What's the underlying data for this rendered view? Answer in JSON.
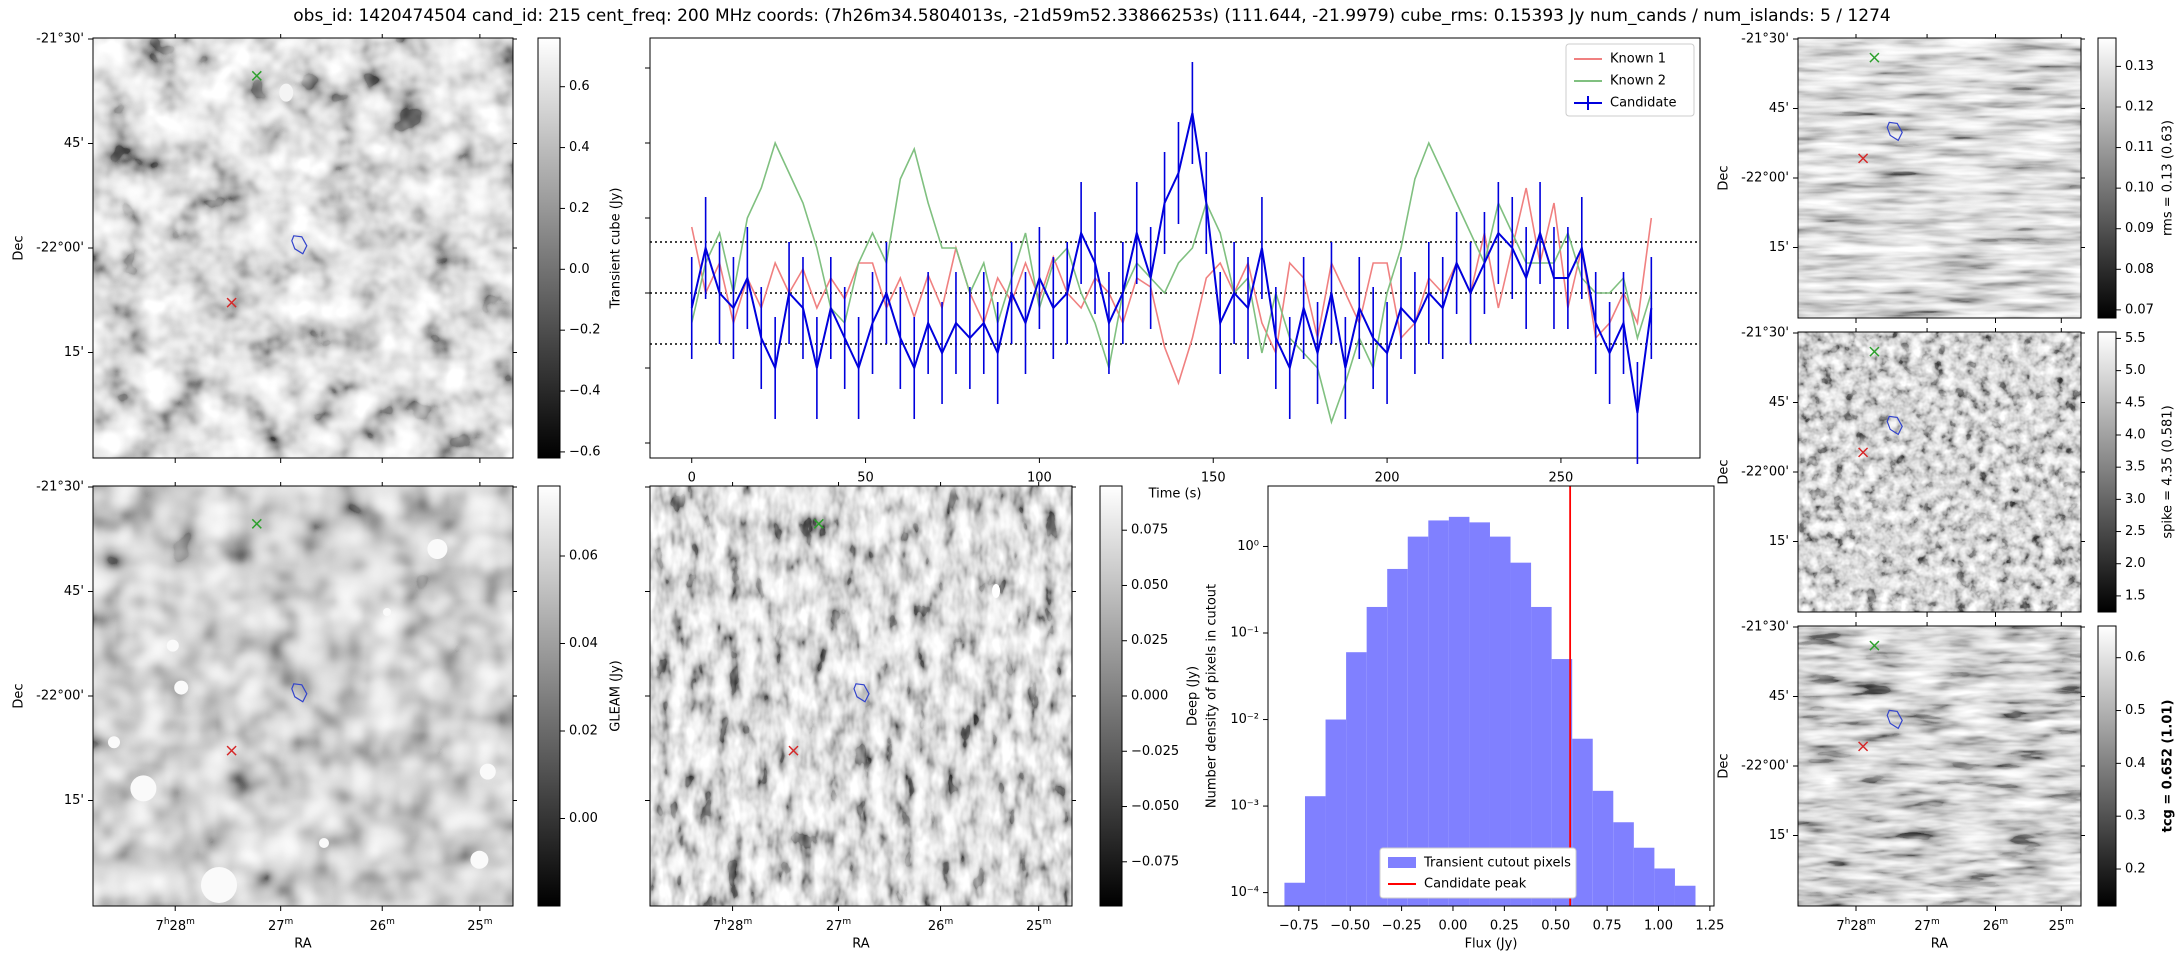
{
  "title": "obs_id: 1420474504 cand_id: 215 cent_freq: 200 MHz coords: (7h26m34.5804013s, -21d59m52.33866253s) (111.644, -21.9979) cube_rms: 0.15393 Jy num_cands / num_islands: 5 / 1274",
  "sky_axes": {
    "dec_ticks": [
      "-21°30'",
      "45'",
      "-22°00'",
      "15'"
    ],
    "ra_ticks": [
      "7h28m",
      "27m",
      "26m",
      "25m"
    ],
    "dec_label": "Dec",
    "ra_label": "RA"
  },
  "markers": {
    "known_color": "#2ca02c",
    "candidate_color": "#d62728",
    "island_color": "#3344cc"
  },
  "colors": {
    "known1": "#f08080",
    "known2": "#80c080",
    "candidate": "#0000dd",
    "hist": "#8080ff",
    "peak": "#ff0000"
  },
  "chart_data": [
    {
      "type": "image",
      "panel": "transient-cube",
      "colorbar_label": "Transient cube (Jy)",
      "colorbar_range": [
        -0.62,
        0.76
      ],
      "colorbar_ticks": [
        "0.6",
        "0.4",
        "0.2",
        "0.0",
        "−0.2",
        "−0.4",
        "−0.6"
      ],
      "colorbar_tick_values": [
        0.6,
        0.4,
        0.2,
        0.0,
        -0.2,
        -0.4,
        -0.6
      ]
    },
    {
      "type": "line",
      "panel": "lightcurve",
      "xlabel": "Time (s)",
      "x_ticks": [
        "0",
        "50",
        "100",
        "150",
        "200",
        "250"
      ],
      "x_tick_values": [
        0,
        50,
        100,
        150,
        200,
        250
      ],
      "xlim": [
        -12,
        290
      ],
      "ylim": [
        -0.55,
        0.85
      ],
      "threshold_lines": [
        0.17,
        0.0,
        -0.17
      ],
      "legend": [
        "Known 1",
        "Known 2",
        "Candidate"
      ],
      "legend_position": "top-right",
      "t_start": 0,
      "t_step": 4,
      "series": [
        {
          "name": "Known 1",
          "values": [
            0.22,
            0.0,
            0.1,
            -0.1,
            0.05,
            -0.05,
            0.1,
            0.0,
            0.08,
            -0.05,
            0.05,
            -0.02,
            0.1,
            0.1,
            -0.05,
            0.05,
            -0.08,
            0.06,
            -0.05,
            0.15,
            0.0,
            -0.1,
            0.05,
            -0.03,
            0.1,
            -0.02,
            0.12,
            0.0,
            -0.05,
            0.05,
            0.0,
            -0.1,
            0.05,
            0.02,
            -0.18,
            -0.3,
            -0.15,
            0.05,
            0.1,
            0.0,
            0.1,
            -0.1,
            -0.2,
            0.1,
            0.05,
            -0.15,
            0.1,
            0.0,
            -0.1,
            0.1,
            0.1,
            -0.15,
            -0.1,
            0.05,
            0.0,
            0.1,
            0.0,
            0.2,
            -0.05,
            0.15,
            0.35,
            0.1,
            0.3,
            -0.05,
            0.15,
            -0.15,
            -0.1,
            0.0,
            -0.1,
            0.25
          ]
        },
        {
          "name": "Known 2",
          "values": [
            -0.1,
            0.1,
            0.2,
            0.0,
            0.25,
            0.35,
            0.5,
            0.4,
            0.3,
            0.15,
            -0.05,
            -0.1,
            0.1,
            0.2,
            0.1,
            0.38,
            0.48,
            0.3,
            0.15,
            0.15,
            0.0,
            0.1,
            -0.1,
            0.05,
            0.2,
            -0.05,
            0.1,
            0.15,
            0.0,
            -0.1,
            -0.25,
            0.0,
            0.1,
            0.05,
            0.0,
            0.1,
            0.15,
            0.3,
            0.2,
            0.0,
            0.05,
            -0.2,
            0.0,
            -0.15,
            -0.2,
            -0.25,
            -0.43,
            -0.3,
            -0.15,
            -0.25,
            0.0,
            0.15,
            0.38,
            0.5,
            0.4,
            0.3,
            0.2,
            0.1,
            0.3,
            0.2,
            0.1,
            0.1,
            0.1,
            0.2,
            0.05,
            0.0,
            0.0,
            0.05,
            -0.15,
            0.0
          ]
        },
        {
          "name": "Candidate",
          "values": [
            -0.05,
            0.15,
            0.0,
            -0.05,
            0.05,
            -0.15,
            -0.25,
            0.0,
            -0.05,
            -0.25,
            -0.05,
            -0.15,
            -0.25,
            -0.1,
            0.0,
            -0.15,
            -0.25,
            -0.1,
            -0.2,
            -0.1,
            -0.15,
            -0.1,
            -0.2,
            0.0,
            -0.1,
            0.05,
            -0.05,
            0.0,
            0.2,
            0.1,
            -0.1,
            0.0,
            0.2,
            0.05,
            0.3,
            0.4,
            0.6,
            0.3,
            -0.1,
            0.0,
            -0.05,
            0.15,
            -0.15,
            -0.25,
            -0.05,
            -0.2,
            0.0,
            -0.25,
            -0.05,
            -0.15,
            -0.2,
            -0.05,
            -0.1,
            0.0,
            -0.05,
            0.1,
            0.0,
            0.1,
            0.2,
            0.15,
            0.05,
            0.2,
            0.05,
            0.05,
            0.15,
            -0.1,
            -0.2,
            -0.1,
            -0.4,
            -0.05
          ],
          "error": 0.17
        }
      ]
    },
    {
      "type": "image",
      "panel": "gleam",
      "colorbar_label": "GLEAM (Jy)",
      "colorbar_range": [
        -0.02,
        0.076
      ],
      "colorbar_ticks": [
        "0.06",
        "0.04",
        "0.02",
        "0.00"
      ],
      "colorbar_tick_values": [
        0.06,
        0.04,
        0.02,
        0.0
      ]
    },
    {
      "type": "image",
      "panel": "deep",
      "colorbar_label": "Deep (Jy)",
      "colorbar_range": [
        -0.095,
        0.095
      ],
      "colorbar_ticks": [
        "0.075",
        "0.050",
        "0.025",
        "0.000",
        "−0.025",
        "−0.050",
        "−0.075"
      ],
      "colorbar_tick_values": [
        0.075,
        0.05,
        0.025,
        0.0,
        -0.025,
        -0.05,
        -0.075
      ]
    },
    {
      "type": "bar",
      "panel": "histogram",
      "xlabel": "Flux (Jy)",
      "ylabel": "Number density of pixels in cutout",
      "x_ticks": [
        "−0.75",
        "−0.50",
        "−0.25",
        "0.00",
        "0.25",
        "0.50",
        "0.75",
        "1.00",
        "1.25"
      ],
      "x_tick_values": [
        -0.75,
        -0.5,
        -0.25,
        0.0,
        0.25,
        0.5,
        0.75,
        1.0,
        1.25
      ],
      "y_ticks": [
        "10⁰",
        "10⁻¹",
        "10⁻²",
        "10⁻³",
        "10⁻⁴"
      ],
      "y_tick_values": [
        1,
        0.1,
        0.01,
        0.001,
        0.0001
      ],
      "y_scale": "log",
      "xlim": [
        -0.9,
        1.27
      ],
      "ylim": [
        7e-05,
        5
      ],
      "bin_edges": [
        -0.82,
        -0.72,
        -0.62,
        -0.52,
        -0.42,
        -0.32,
        -0.22,
        -0.12,
        -0.02,
        0.08,
        0.18,
        0.28,
        0.38,
        0.48,
        0.58,
        0.68,
        0.78,
        0.88,
        0.98,
        1.08,
        1.18
      ],
      "values": [
        0.00013,
        0.0013,
        0.01,
        0.06,
        0.2,
        0.55,
        1.3,
        2.0,
        2.2,
        1.9,
        1.3,
        0.65,
        0.2,
        0.05,
        0.006,
        0.0015,
        0.00065,
        0.00033,
        0.00019,
        0.00012
      ],
      "peak_flux": 0.57,
      "legend": [
        "Transient cutout pixels",
        "Candidate peak"
      ],
      "legend_position": "bottom-center"
    },
    {
      "type": "image",
      "panel": "rms",
      "colorbar_label": "rms = 0.13 (0.63)",
      "colorbar_range": [
        0.068,
        0.137
      ],
      "colorbar_ticks": [
        "0.13",
        "0.12",
        "0.11",
        "0.10",
        "0.09",
        "0.08",
        "0.07"
      ],
      "colorbar_tick_values": [
        0.13,
        0.12,
        0.11,
        0.1,
        0.09,
        0.08,
        0.07
      ]
    },
    {
      "type": "image",
      "panel": "spike",
      "colorbar_label": "spike = 4.35 (0.581)",
      "colorbar_range": [
        1.25,
        5.6
      ],
      "colorbar_ticks": [
        "5.5",
        "5.0",
        "4.5",
        "4.0",
        "3.5",
        "3.0",
        "2.5",
        "2.0",
        "1.5"
      ],
      "colorbar_tick_values": [
        5.5,
        5.0,
        4.5,
        4.0,
        3.5,
        3.0,
        2.5,
        2.0,
        1.5
      ]
    },
    {
      "type": "image",
      "panel": "tcg",
      "colorbar_label": "tcg = 0.652 (1.01)",
      "colorbar_range": [
        0.13,
        0.66
      ],
      "colorbar_ticks": [
        "0.6",
        "0.5",
        "0.4",
        "0.3",
        "0.2"
      ],
      "colorbar_tick_values": [
        0.6,
        0.5,
        0.4,
        0.3,
        0.2
      ]
    }
  ]
}
